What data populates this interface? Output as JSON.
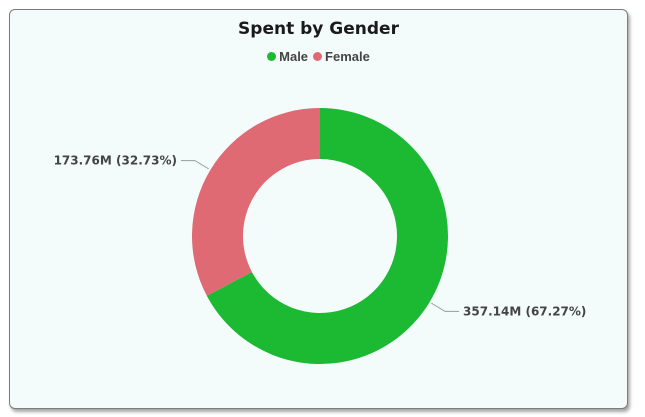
{
  "chart_data": {
    "type": "pie",
    "variant": "donut",
    "title": "Spent by Gender",
    "legend_position": "top-center",
    "categories": [
      "Male",
      "Female"
    ],
    "values": [
      357.14,
      173.76
    ],
    "value_unit": "M",
    "data_labels": [
      "357.14M (67.27%)",
      "173.76M (32.73%)"
    ],
    "colors": [
      "#1cb932",
      "#e06a73"
    ]
  }
}
